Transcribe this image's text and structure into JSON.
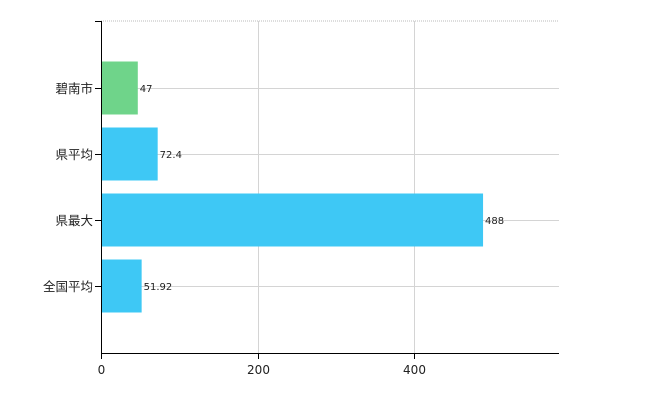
{
  "chart_data": {
    "type": "bar",
    "orientation": "horizontal",
    "categories": [
      "碧南市",
      "県平均",
      "県最大",
      "全国平均"
    ],
    "values": [
      47,
      72.4,
      488,
      51.92
    ],
    "value_labels": [
      "47",
      "72.4",
      "488",
      "51.92"
    ],
    "bar_colors": [
      "#6fd48a",
      "#3ec8f5",
      "#3ec8f5",
      "#3ec8f5"
    ],
    "xlim": [
      0,
      585
    ],
    "xticks": [
      0,
      200,
      400
    ],
    "xtick_labels": [
      "0",
      "200",
      "400"
    ],
    "grid": true,
    "title": "",
    "xlabel": "",
    "ylabel": ""
  }
}
